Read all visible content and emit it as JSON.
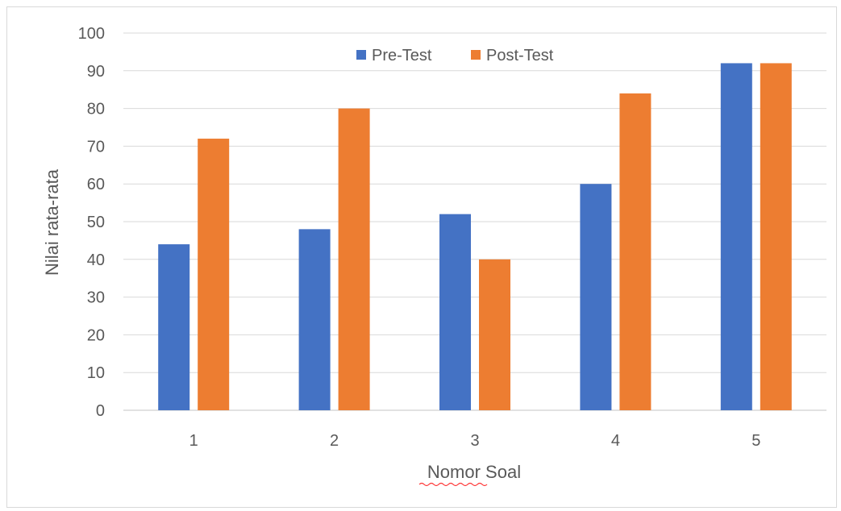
{
  "chart_data": {
    "type": "bar",
    "categories": [
      "1",
      "2",
      "3",
      "4",
      "5"
    ],
    "series": [
      {
        "name": "Pre-Test",
        "values": [
          44,
          48,
          52,
          60,
          92
        ],
        "color": "#4472C4"
      },
      {
        "name": "Post-Test",
        "values": [
          72,
          80,
          40,
          84,
          92
        ],
        "color": "#ED7D31"
      }
    ],
    "title": "",
    "xlabel": "Nomor Soal",
    "ylabel": "Nilai rata-rata",
    "ylim": [
      0,
      100
    ],
    "yticks": [
      "0",
      "10",
      "20",
      "30",
      "40",
      "50",
      "60",
      "70",
      "80",
      "90",
      "100"
    ],
    "grid": true,
    "legend_position": "top-center",
    "gridline_color": "#d9d9d9",
    "text_color": "#595959"
  }
}
